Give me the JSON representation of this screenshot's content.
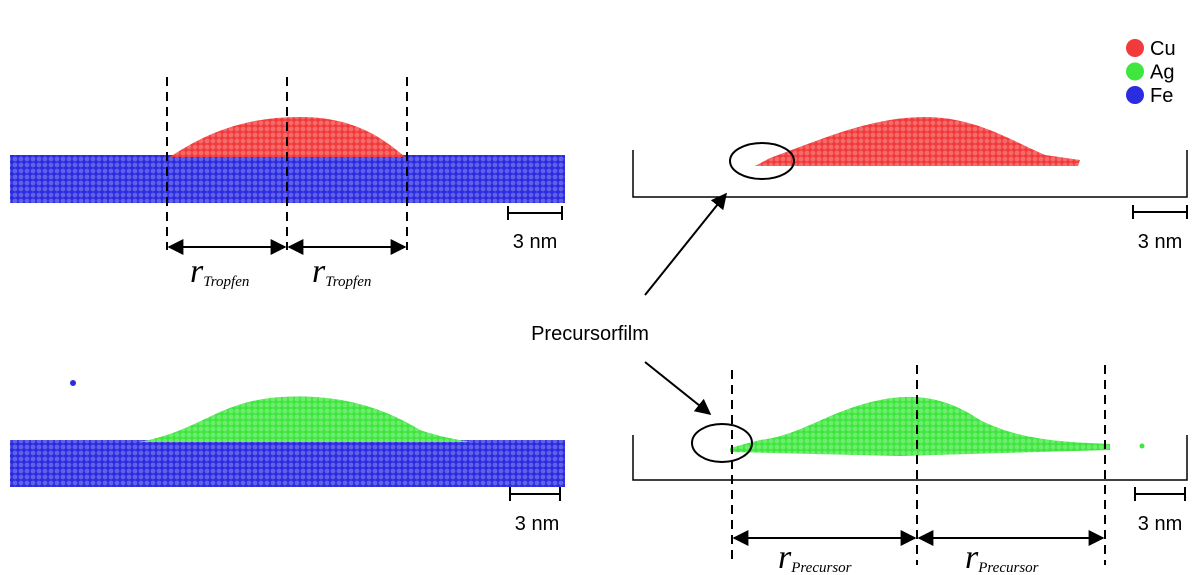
{
  "legend": [
    {
      "label": "Cu",
      "color": "#f23a3a"
    },
    {
      "label": "Ag",
      "color": "#3ee63e"
    },
    {
      "label": "Fe",
      "color": "#2b2be0"
    }
  ],
  "panels": [
    {
      "scale_bar": "3 nm",
      "radius_labels": [
        {
          "symbol": "r",
          "subscript": "Tropfen"
        },
        {
          "symbol": "r",
          "subscript": "Tropfen"
        }
      ]
    },
    {
      "scale_bar": "3 nm"
    },
    {
      "scale_bar": "3 nm"
    },
    {
      "scale_bar": "3 nm",
      "radius_labels": [
        {
          "symbol": "r",
          "subscript": "Precursor"
        },
        {
          "symbol": "r",
          "subscript": "Precursor"
        }
      ]
    }
  ],
  "annotation": "Precursorfilm"
}
